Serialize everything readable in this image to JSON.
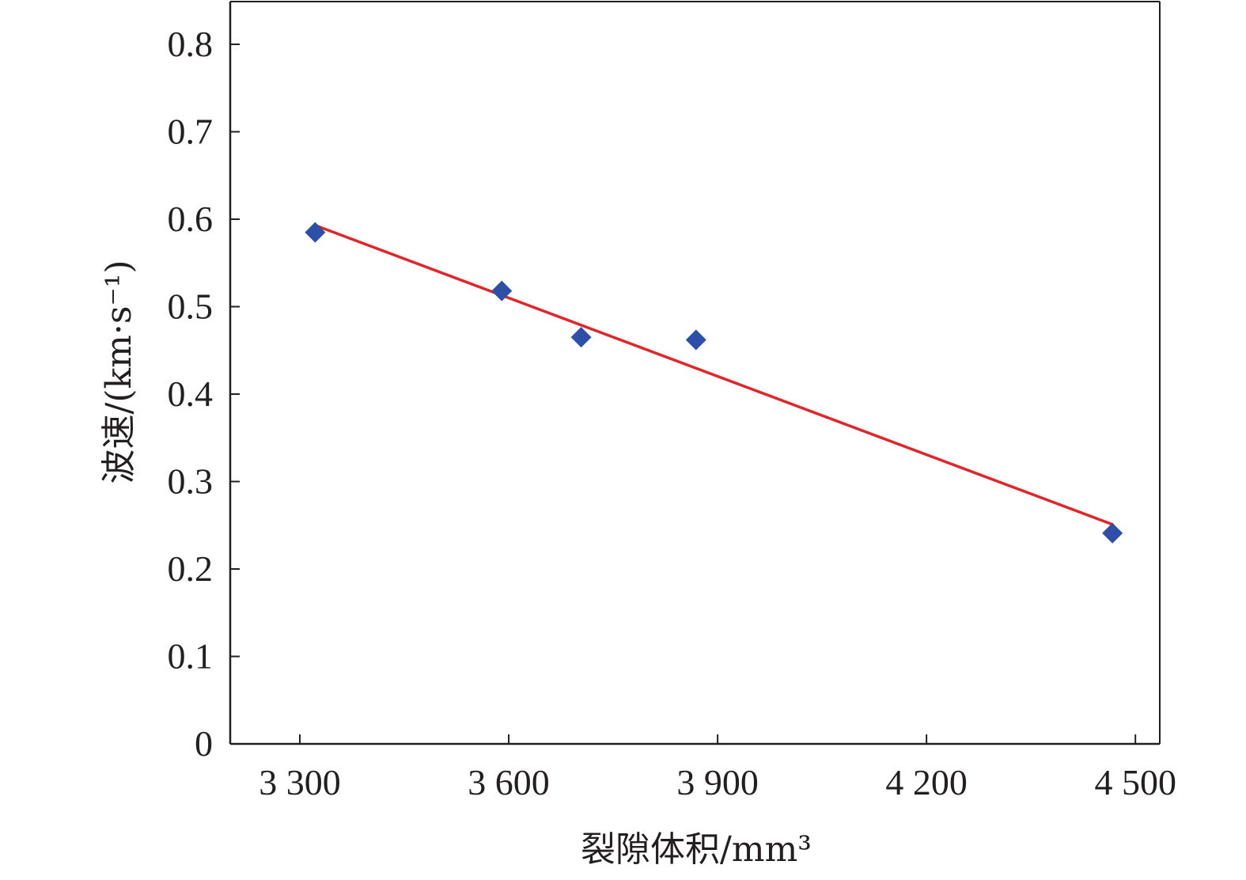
{
  "chart_data": {
    "type": "scatter",
    "title": "",
    "xlabel": "裂隙体积/mm³",
    "ylabel": "波速/(km·s⁻¹)",
    "xlim": [
      3200,
      4535
    ],
    "ylim": [
      0,
      0.8
    ],
    "x_ticks": [
      3300,
      3600,
      3900,
      4200,
      4500
    ],
    "x_tick_labels": [
      "3 300",
      "3 600",
      "3 900",
      "4 200",
      "4 500"
    ],
    "y_ticks": [
      0,
      0.1,
      0.2,
      0.3,
      0.4,
      0.5,
      0.6,
      0.7,
      0.8
    ],
    "y_tick_labels": [
      "0",
      "0.1",
      "0.2",
      "0.3",
      "0.4",
      "0.5",
      "0.6",
      "0.7",
      "0.8"
    ],
    "grid": false,
    "legend": "none",
    "series": [
      {
        "type": "scatter",
        "marker": "diamond",
        "color": "#2e4fa8",
        "points": [
          {
            "x": 3322,
            "y": 0.585
          },
          {
            "x": 3590,
            "y": 0.518
          },
          {
            "x": 3704,
            "y": 0.465
          },
          {
            "x": 3869,
            "y": 0.462
          },
          {
            "x": 4467,
            "y": 0.241
          }
        ]
      },
      {
        "type": "line",
        "role": "linear-fit",
        "color": "#e0262b",
        "points": [
          {
            "x": 3322,
            "y": 0.593
          },
          {
            "x": 4467,
            "y": 0.251
          }
        ]
      }
    ]
  }
}
